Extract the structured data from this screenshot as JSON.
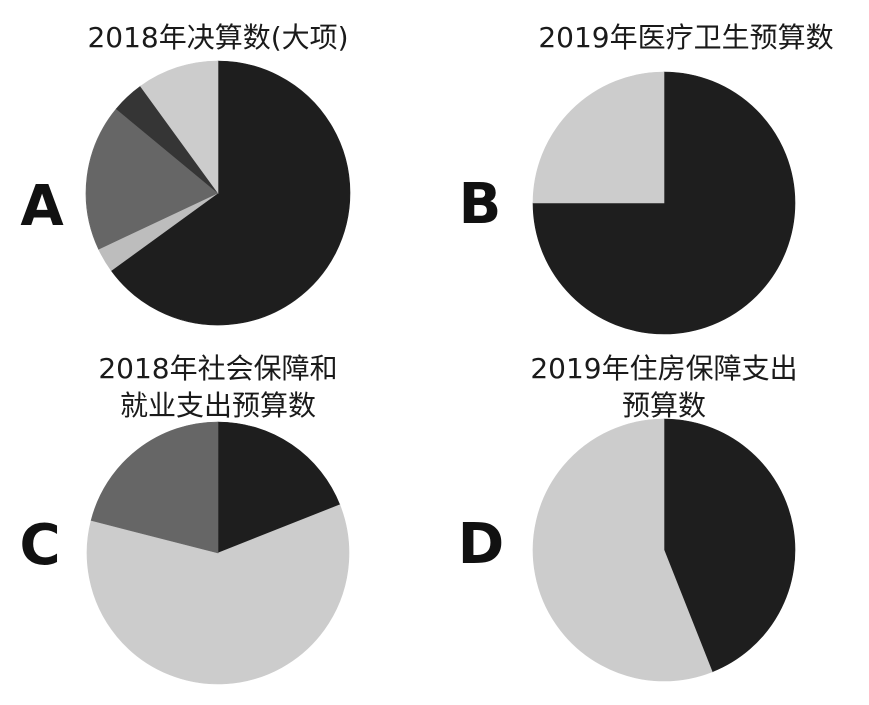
{
  "chart_data": [
    {
      "type": "pie",
      "panel": "A",
      "title": [
        "2018年决算数(大项)"
      ],
      "values": [
        65,
        3,
        18,
        4,
        10
      ],
      "colors": [
        "#1e1e1e",
        "#bdbdbd",
        "#666666",
        "#353535",
        "#cccccc"
      ]
    },
    {
      "type": "pie",
      "panel": "B",
      "title": [
        "2019年医疗卫生预算数"
      ],
      "values": [
        75,
        25
      ],
      "colors": [
        "#1e1e1e",
        "#cccccc"
      ]
    },
    {
      "type": "pie",
      "panel": "C",
      "title": [
        "2018年社会保障和",
        "就业支出预算数"
      ],
      "values": [
        19,
        60,
        21
      ],
      "colors": [
        "#1e1e1e",
        "#cccccc",
        "#666666"
      ]
    },
    {
      "type": "pie",
      "panel": "D",
      "title": [
        "2019年住房保障支出",
        "预算数"
      ],
      "values": [
        44,
        56
      ],
      "colors": [
        "#1e1e1e",
        "#cccccc"
      ]
    }
  ]
}
